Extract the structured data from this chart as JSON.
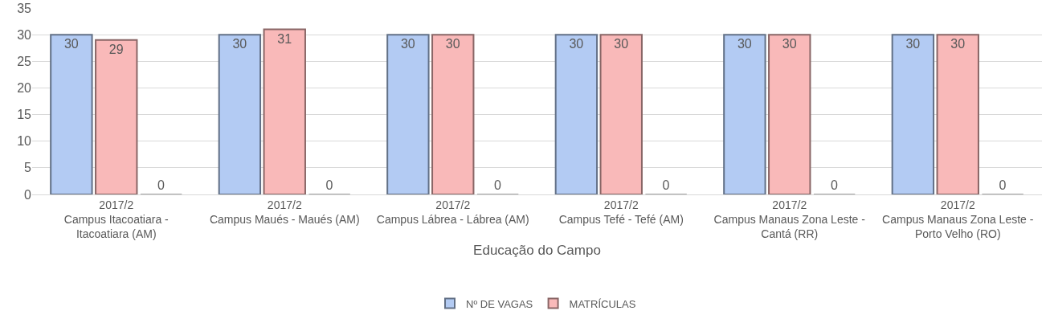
{
  "chart_data": {
    "type": "bar",
    "categories": [
      "2017/2\nCampus Itacoatiara - Itacoatiara (AM)",
      "2017/2\nCampus Maués - Maués (AM)",
      "2017/2\nCampus Lábrea - Lábrea (AM)",
      "2017/2\nCampus Tefé - Tefé (AM)",
      "2017/2\nCampus Manaus Zona Leste - Cantá (RR)",
      "2017/2\nCampus Manaus Zona Leste - Porto Velho (RO)"
    ],
    "xlabel": "Educação do Campo",
    "series": [
      {
        "name": "Nº DE VAGAS",
        "color": "#b3cbf3",
        "values": [
          30,
          30,
          30,
          30,
          30,
          30
        ]
      },
      {
        "name": "MATRÍCULAS",
        "color": "#f9b9b9",
        "values": [
          29,
          31,
          30,
          30,
          30,
          30
        ]
      },
      {
        "color": "#a5a5a5",
        "values": [
          0,
          0,
          0,
          0,
          0,
          0
        ]
      }
    ],
    "ylim": [
      0,
      35
    ],
    "yticks": [
      0,
      5,
      10,
      15,
      20,
      25,
      30,
      35
    ],
    "grid": "y",
    "legend": "bottom",
    "data_labels": true
  }
}
